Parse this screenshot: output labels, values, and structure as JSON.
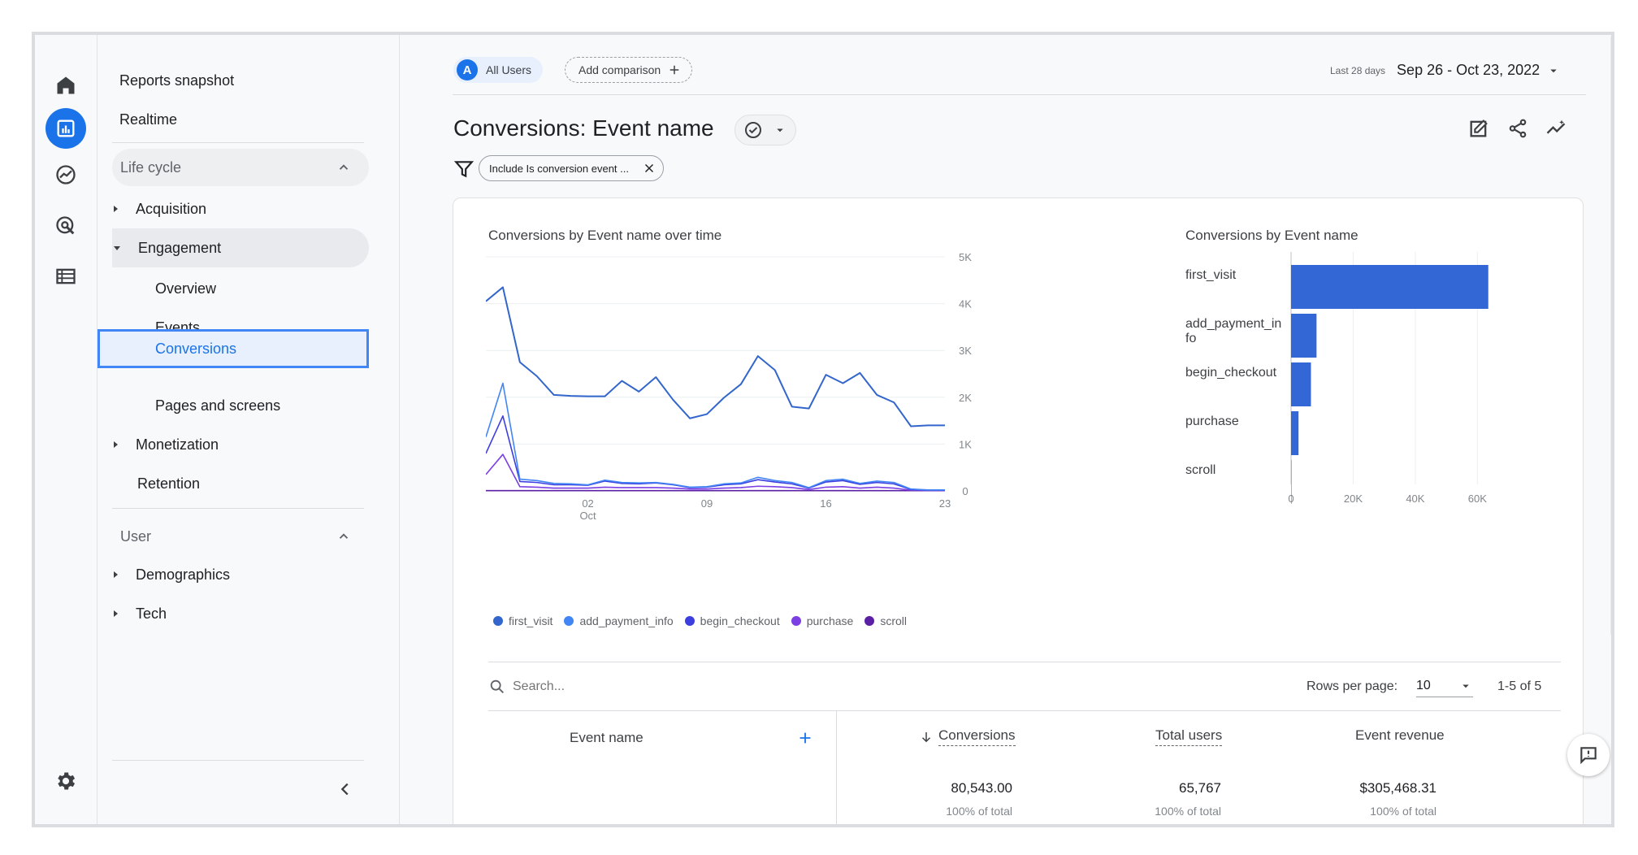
{
  "nav": {
    "reports_snapshot": "Reports snapshot",
    "realtime": "Realtime",
    "lifecycle": "Life cycle",
    "acquisition": "Acquisition",
    "engagement": "Engagement",
    "overview": "Overview",
    "events": "Events",
    "conversions": "Conversions",
    "pages_and_screens": "Pages and screens",
    "monetization": "Monetization",
    "retention": "Retention",
    "user": "User",
    "demographics": "Demographics",
    "tech": "Tech"
  },
  "header": {
    "segment_badge": "A",
    "segment": "All Users",
    "add_comparison": "Add comparison",
    "date_prefix": "Last 28 days",
    "date_range": "Sep 26 - Oct 23, 2022",
    "title": "Conversions: Event name",
    "filter": "Include Is conversion event ..."
  },
  "colors": {
    "accent": "#1a73e8",
    "first_visit": "#3366cc",
    "add_payment_info": "#4285f4",
    "begin_checkout": "#3c3ee0",
    "purchase": "#7b3fe4",
    "scroll": "#5b1fa6"
  },
  "chart_data": [
    {
      "type": "line",
      "title": "Conversions by Event name over time",
      "x_tick_labels": [
        "02",
        "09",
        "16",
        "23"
      ],
      "x_tick_sublabel": "Oct",
      "x": [
        "Sep 26",
        "Sep 27",
        "Sep 28",
        "Sep 29",
        "Sep 30",
        "Oct 1",
        "Oct 2",
        "Oct 3",
        "Oct 4",
        "Oct 5",
        "Oct 6",
        "Oct 7",
        "Oct 8",
        "Oct 9",
        "Oct 10",
        "Oct 11",
        "Oct 12",
        "Oct 13",
        "Oct 14",
        "Oct 15",
        "Oct 16",
        "Oct 17",
        "Oct 18",
        "Oct 19",
        "Oct 20",
        "Oct 21",
        "Oct 22",
        "Oct 23"
      ],
      "y_ticks": [
        "5K",
        "4K",
        "3K",
        "2K",
        "1K",
        "0"
      ],
      "ylim": [
        0,
        5000
      ],
      "series": [
        {
          "name": "first_visit",
          "values": [
            4050,
            4350,
            2750,
            2450,
            2050,
            2030,
            2020,
            2020,
            2350,
            2120,
            2430,
            1950,
            1550,
            1640,
            1990,
            2280,
            2880,
            2580,
            1800,
            1760,
            2480,
            2300,
            2520,
            2050,
            1890,
            1380,
            1400,
            1400
          ]
        },
        {
          "name": "add_payment_info",
          "values": [
            1150,
            2300,
            250,
            220,
            160,
            150,
            130,
            230,
            180,
            170,
            180,
            140,
            80,
            90,
            150,
            170,
            290,
            220,
            180,
            70,
            220,
            250,
            160,
            210,
            180,
            40,
            20,
            20
          ]
        },
        {
          "name": "begin_checkout",
          "values": [
            800,
            1600,
            200,
            180,
            130,
            130,
            120,
            210,
            160,
            150,
            170,
            130,
            70,
            80,
            130,
            150,
            240,
            190,
            150,
            60,
            190,
            220,
            140,
            180,
            150,
            30,
            15,
            15
          ]
        },
        {
          "name": "purchase",
          "values": [
            350,
            780,
            90,
            80,
            60,
            60,
            60,
            80,
            70,
            70,
            70,
            60,
            40,
            40,
            60,
            70,
            100,
            90,
            70,
            30,
            80,
            90,
            60,
            80,
            60,
            15,
            10,
            10
          ]
        },
        {
          "name": "scroll",
          "values": [
            5,
            5,
            5,
            5,
            5,
            5,
            5,
            5,
            5,
            5,
            5,
            5,
            5,
            5,
            5,
            5,
            5,
            5,
            5,
            5,
            5,
            5,
            5,
            5,
            5,
            5,
            5,
            5
          ]
        }
      ]
    },
    {
      "type": "bar",
      "orientation": "horizontal",
      "title": "Conversions by Event name",
      "categories": [
        "first_visit",
        "add_payment_in\nfo",
        "begin_checkout",
        "purchase",
        "scroll"
      ],
      "values": [
        63500,
        8200,
        6400,
        2400,
        43
      ],
      "x_ticks": [
        "0",
        "20K",
        "40K",
        "60K"
      ],
      "xlim": [
        0,
        80000
      ]
    }
  ],
  "legend": [
    "first_visit",
    "add_payment_info",
    "begin_checkout",
    "purchase",
    "scroll"
  ],
  "table": {
    "search_placeholder": "Search...",
    "rows_per_page_label": "Rows per page:",
    "rows_per_page": "10",
    "pagination": "1-5 of 5",
    "col_event_name": "Event name",
    "col_conversions": "Conversions",
    "col_total_users": "Total users",
    "col_event_revenue": "Event revenue",
    "totals": {
      "conversions": "80,543.00",
      "total_users": "65,767",
      "event_revenue": "$305,468.31",
      "pct": "100% of total"
    }
  }
}
